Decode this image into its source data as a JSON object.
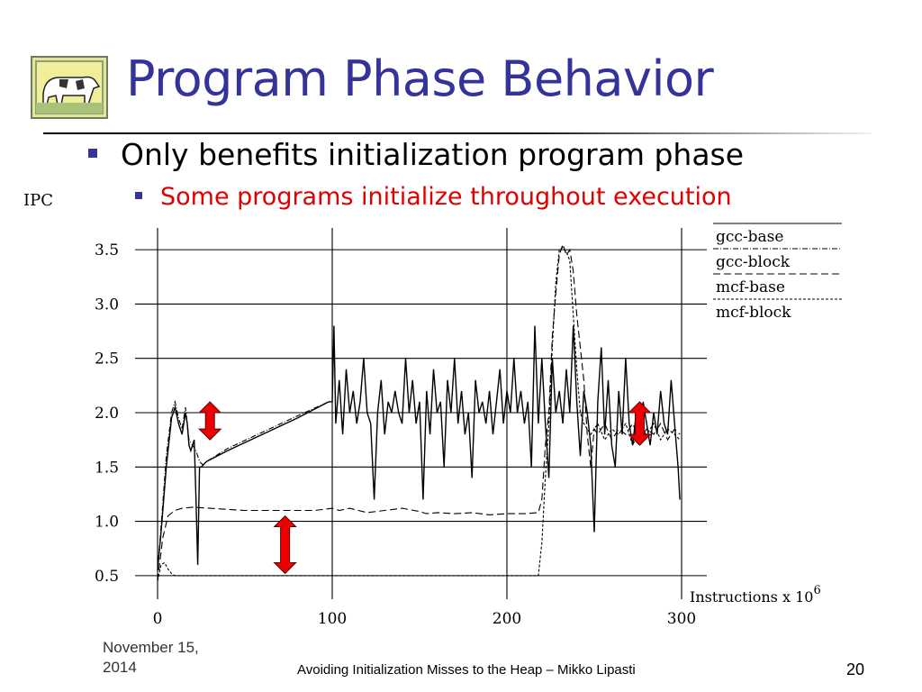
{
  "slide": {
    "title": "Program Phase Behavior",
    "bullet1": "Only benefits initialization program phase",
    "bullet2": "Some programs initialize throughout execution",
    "bullet2_color": "#e00000",
    "title_color": "#333399",
    "logo_icon": "cow-painting-icon"
  },
  "footer": {
    "date": "November 15, 2014",
    "center": "Avoiding Initialization Misses to the Heap – Mikko Lipasti",
    "page": "20"
  },
  "chart_data": {
    "type": "line",
    "ylabel": "IPC",
    "xlabel": "Instructions x 10",
    "xlabel_exponent": "6",
    "xlim": [
      0,
      300
    ],
    "ylim": [
      0.3,
      3.7
    ],
    "x_ticks": [
      "0",
      "100",
      "200",
      "300"
    ],
    "y_ticks": [
      "0.5",
      "1.0",
      "1.5",
      "2.0",
      "2.5",
      "3.0",
      "3.5"
    ],
    "grid": "horizontal and vertical",
    "legend_position": "top-right",
    "series": [
      {
        "name": "gcc-base",
        "style": "solid",
        "points": [
          [
            0,
            0.55
          ],
          [
            2,
            0.9
          ],
          [
            5,
            1.5
          ],
          [
            8,
            1.95
          ],
          [
            10,
            2.05
          ],
          [
            12,
            1.9
          ],
          [
            14,
            1.8
          ],
          [
            16,
            2.0
          ],
          [
            17,
            1.9
          ],
          [
            18,
            1.7
          ],
          [
            19,
            1.65
          ],
          [
            20,
            1.7
          ],
          [
            21,
            1.75
          ],
          [
            22,
            1.2
          ],
          [
            23,
            0.6
          ],
          [
            24,
            1.5
          ],
          [
            25,
            1.5
          ],
          [
            28,
            1.55
          ],
          [
            40,
            1.65
          ],
          [
            60,
            1.8
          ],
          [
            80,
            1.95
          ],
          [
            98,
            2.1
          ],
          [
            100,
            2.1
          ],
          [
            101,
            2.8
          ],
          [
            102,
            1.9
          ],
          [
            104,
            2.3
          ],
          [
            106,
            1.8
          ],
          [
            108,
            2.4
          ],
          [
            110,
            2.0
          ],
          [
            112,
            2.2
          ],
          [
            114,
            1.9
          ],
          [
            116,
            2.1
          ],
          [
            118,
            2.5
          ],
          [
            120,
            2.0
          ],
          [
            122,
            1.9
          ],
          [
            124,
            1.2
          ],
          [
            126,
            2.0
          ],
          [
            128,
            2.3
          ],
          [
            130,
            1.8
          ],
          [
            132,
            2.1
          ],
          [
            134,
            2.0
          ],
          [
            136,
            2.2
          ],
          [
            138,
            2.0
          ],
          [
            140,
            1.9
          ],
          [
            142,
            2.5
          ],
          [
            144,
            2.0
          ],
          [
            146,
            2.3
          ],
          [
            148,
            1.9
          ],
          [
            150,
            2.1
          ],
          [
            152,
            1.2
          ],
          [
            154,
            2.2
          ],
          [
            156,
            1.8
          ],
          [
            158,
            2.4
          ],
          [
            160,
            2.0
          ],
          [
            162,
            2.1
          ],
          [
            164,
            1.5
          ],
          [
            166,
            2.3
          ],
          [
            168,
            2.0
          ],
          [
            170,
            2.5
          ],
          [
            172,
            1.9
          ],
          [
            174,
            2.2
          ],
          [
            176,
            1.8
          ],
          [
            178,
            2.0
          ],
          [
            180,
            1.4
          ],
          [
            182,
            2.3
          ],
          [
            184,
            2.0
          ],
          [
            186,
            2.1
          ],
          [
            188,
            1.9
          ],
          [
            190,
            2.2
          ],
          [
            192,
            1.8
          ],
          [
            194,
            2.1
          ],
          [
            196,
            2.4
          ],
          [
            198,
            1.9
          ],
          [
            200,
            2.2
          ],
          [
            202,
            2.0
          ],
          [
            204,
            2.5
          ],
          [
            206,
            2.0
          ],
          [
            208,
            2.2
          ],
          [
            210,
            1.9
          ],
          [
            212,
            2.1
          ],
          [
            214,
            1.5
          ],
          [
            216,
            2.8
          ],
          [
            218,
            1.9
          ],
          [
            220,
            2.5
          ],
          [
            222,
            1.9
          ],
          [
            224,
            1.4
          ],
          [
            226,
            2.5
          ],
          [
            228,
            2.0
          ],
          [
            230,
            2.2
          ],
          [
            232,
            1.9
          ],
          [
            234,
            2.4
          ],
          [
            236,
            2.0
          ],
          [
            238,
            2.8
          ],
          [
            240,
            2.1
          ],
          [
            242,
            1.6
          ],
          [
            244,
            2.2
          ],
          [
            246,
            2.0
          ],
          [
            248,
            1.7
          ],
          [
            250,
            0.9
          ],
          [
            252,
            2.1
          ],
          [
            254,
            2.6
          ],
          [
            256,
            1.8
          ],
          [
            258,
            2.3
          ],
          [
            260,
            1.7
          ],
          [
            262,
            1.5
          ],
          [
            264,
            2.2
          ],
          [
            266,
            1.8
          ],
          [
            268,
            2.5
          ],
          [
            270,
            1.9
          ],
          [
            272,
            1.7
          ],
          [
            274,
            2.0
          ],
          [
            276,
            1.8
          ],
          [
            278,
            2.1
          ],
          [
            280,
            1.9
          ],
          [
            282,
            1.7
          ],
          [
            284,
            2.0
          ],
          [
            286,
            1.8
          ],
          [
            288,
            2.2
          ],
          [
            290,
            1.9
          ],
          [
            292,
            1.8
          ],
          [
            294,
            2.3
          ],
          [
            296,
            1.9
          ],
          [
            298,
            1.5
          ],
          [
            299,
            1.2
          ]
        ]
      },
      {
        "name": "gcc-block",
        "style": "dash-dot",
        "points": [
          [
            0,
            0.55
          ],
          [
            2,
            0.95
          ],
          [
            5,
            1.6
          ],
          [
            8,
            2.0
          ],
          [
            10,
            2.1
          ],
          [
            12,
            1.95
          ],
          [
            14,
            1.85
          ],
          [
            16,
            2.05
          ],
          [
            18,
            1.75
          ],
          [
            20,
            1.7
          ],
          [
            22,
            1.65
          ],
          [
            24,
            1.55
          ],
          [
            26,
            1.52
          ],
          [
            28,
            1.55
          ],
          [
            40,
            1.67
          ],
          [
            60,
            1.82
          ],
          [
            80,
            1.97
          ],
          [
            98,
            2.1
          ],
          [
            100,
            2.1
          ]
        ]
      },
      {
        "name": "mcf-base",
        "style": "dashed",
        "points": [
          [
            0,
            0.45
          ],
          [
            3,
            0.85
          ],
          [
            6,
            1.05
          ],
          [
            10,
            1.1
          ],
          [
            14,
            1.12
          ],
          [
            20,
            1.13
          ],
          [
            30,
            1.12
          ],
          [
            50,
            1.1
          ],
          [
            70,
            1.1
          ],
          [
            90,
            1.1
          ],
          [
            100,
            1.12
          ],
          [
            104,
            1.1
          ],
          [
            110,
            1.12
          ],
          [
            120,
            1.08
          ],
          [
            130,
            1.1
          ],
          [
            140,
            1.12
          ],
          [
            150,
            1.09
          ],
          [
            154,
            1.07
          ],
          [
            160,
            1.08
          ],
          [
            170,
            1.07
          ],
          [
            180,
            1.08
          ],
          [
            190,
            1.06
          ],
          [
            200,
            1.07
          ],
          [
            210,
            1.07
          ],
          [
            218,
            1.08
          ],
          [
            220,
            1.2
          ],
          [
            222,
            1.7
          ],
          [
            224,
            2.0
          ],
          [
            226,
            2.7
          ],
          [
            228,
            3.1
          ],
          [
            230,
            3.45
          ],
          [
            232,
            3.55
          ],
          [
            234,
            3.45
          ],
          [
            236,
            3.5
          ],
          [
            238,
            3.3
          ],
          [
            240,
            2.9
          ],
          [
            242,
            2.6
          ],
          [
            244,
            2.3
          ],
          [
            246,
            1.8
          ],
          [
            248,
            1.5
          ],
          [
            250,
            1.85
          ],
          [
            252,
            1.8
          ],
          [
            256,
            1.9
          ],
          [
            260,
            1.75
          ],
          [
            264,
            1.85
          ],
          [
            268,
            1.8
          ],
          [
            272,
            1.9
          ],
          [
            276,
            1.75
          ],
          [
            280,
            1.85
          ],
          [
            284,
            1.8
          ],
          [
            288,
            1.9
          ],
          [
            292,
            1.75
          ],
          [
            296,
            1.85
          ],
          [
            299,
            1.8
          ]
        ]
      },
      {
        "name": "mcf-block",
        "style": "dense-dash",
        "points": [
          [
            0,
            0.45
          ],
          [
            2,
            0.6
          ],
          [
            4,
            0.62
          ],
          [
            6,
            0.56
          ],
          [
            8,
            0.52
          ],
          [
            10,
            0.5
          ],
          [
            30,
            0.5
          ],
          [
            60,
            0.5
          ],
          [
            90,
            0.5
          ],
          [
            120,
            0.5
          ],
          [
            150,
            0.5
          ],
          [
            180,
            0.5
          ],
          [
            210,
            0.5
          ],
          [
            218,
            0.5
          ],
          [
            220,
            0.8
          ],
          [
            222,
            1.4
          ],
          [
            224,
            1.9
          ],
          [
            226,
            2.6
          ],
          [
            228,
            3.2
          ],
          [
            230,
            3.5
          ],
          [
            232,
            3.52
          ],
          [
            234,
            3.48
          ],
          [
            236,
            3.4
          ],
          [
            238,
            2.9
          ],
          [
            240,
            2.4
          ],
          [
            242,
            2.0
          ],
          [
            244,
            1.9
          ],
          [
            248,
            1.8
          ],
          [
            252,
            1.9
          ],
          [
            256,
            1.75
          ],
          [
            260,
            1.85
          ],
          [
            264,
            1.8
          ],
          [
            268,
            1.9
          ],
          [
            272,
            1.7
          ],
          [
            276,
            1.85
          ],
          [
            280,
            1.8
          ],
          [
            284,
            1.9
          ],
          [
            288,
            1.75
          ],
          [
            292,
            1.85
          ],
          [
            296,
            1.8
          ],
          [
            299,
            1.75
          ]
        ]
      }
    ],
    "annotations": [
      {
        "type": "double-arrow",
        "color": "#ee0000",
        "x": 30,
        "y_from": 1.75,
        "y_to": 2.1
      },
      {
        "type": "double-arrow",
        "color": "#ee0000",
        "x": 73,
        "y_from": 0.52,
        "y_to": 1.05
      },
      {
        "type": "double-arrow",
        "color": "#ee0000",
        "x": 276,
        "y_from": 1.7,
        "y_to": 2.1
      }
    ]
  }
}
